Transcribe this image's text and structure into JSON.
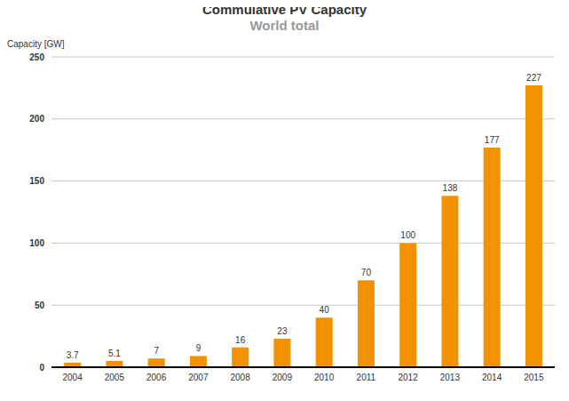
{
  "chart_data": {
    "type": "bar",
    "title": "Commulative PV Capacity",
    "subtitle": "World total",
    "y_label": "Capacity [GW]",
    "categories": [
      "2004",
      "2005",
      "2006",
      "2007",
      "2008",
      "2009",
      "2010",
      "2011",
      "2012",
      "2013",
      "2014",
      "2015"
    ],
    "values": [
      3.7,
      5.1,
      7,
      9,
      16,
      23,
      40,
      70,
      100,
      138,
      177,
      227
    ],
    "color": "#f39200",
    "ylim": [
      0,
      250
    ],
    "yticks": [
      0,
      50,
      100,
      150,
      200,
      250
    ],
    "grid": true,
    "data_labels": true
  }
}
